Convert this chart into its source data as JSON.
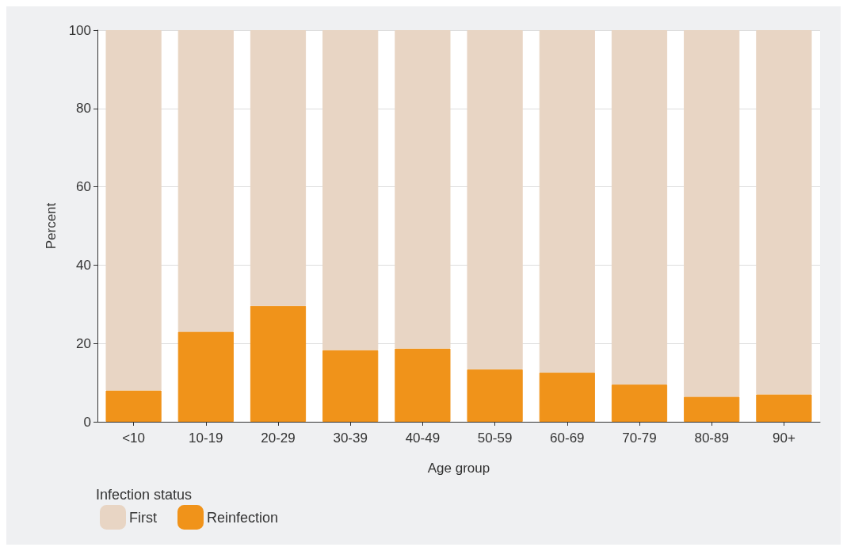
{
  "chart_data": {
    "type": "bar",
    "stacked": true,
    "xlabel": "Age group",
    "ylabel": "Percent",
    "legend_title": "Infection status",
    "legend": "bottom left",
    "grid": "y",
    "categories": [
      "<10",
      "10-19",
      "20-29",
      "30-39",
      "40-49",
      "50-59",
      "60-69",
      "70-79",
      "80-89",
      "90+"
    ],
    "ylim": [
      0,
      100
    ],
    "yticks": [
      0,
      20,
      40,
      60,
      80,
      100
    ],
    "series": [
      {
        "name": "Reinfection",
        "color": "#f0931a",
        "values": [
          8.0,
          23.0,
          29.6,
          18.3,
          18.7,
          13.4,
          12.6,
          9.5,
          6.4,
          7.0
        ]
      },
      {
        "name": "First",
        "color": "#e8d5c4",
        "values": [
          92.0,
          77.0,
          70.4,
          81.7,
          81.3,
          86.6,
          87.4,
          90.5,
          93.6,
          93.0
        ]
      }
    ]
  }
}
